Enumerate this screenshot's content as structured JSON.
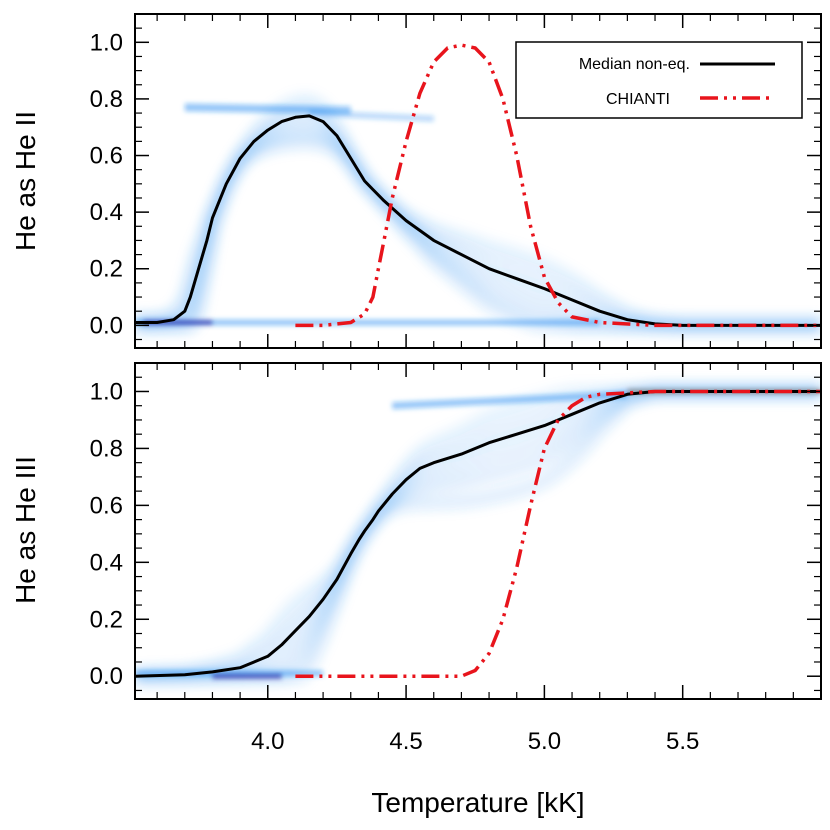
{
  "colors": {
    "median_line": "#000000",
    "chianti_line": "#e8141c",
    "density": "#1a86f0",
    "density_core": "#2a2aa8"
  },
  "chart_data": [
    {
      "type": "line",
      "id": "he2",
      "ylabel": "He as He II",
      "xlim": [
        3.52,
        6.0
      ],
      "ylim": [
        -0.08,
        1.1
      ],
      "yticks": [
        0.0,
        0.2,
        0.4,
        0.6,
        0.8,
        1.0
      ],
      "ytick_labels": [
        "0.0",
        "0.2",
        "0.4",
        "0.6",
        "0.8",
        "1.0"
      ],
      "xticks": [
        4.0,
        4.5,
        5.0,
        5.5
      ],
      "xtick_labels": [],
      "legend": {
        "position": "top-right",
        "entries": [
          {
            "label": "Median non-eq.",
            "series": "median"
          },
          {
            "label": "CHIANTI",
            "series": "chianti"
          }
        ]
      },
      "series": [
        {
          "name": "median",
          "label": "Median non-eq.",
          "style": "solid",
          "x": [
            3.52,
            3.6,
            3.66,
            3.7,
            3.72,
            3.75,
            3.78,
            3.8,
            3.85,
            3.9,
            3.95,
            4.0,
            4.05,
            4.1,
            4.15,
            4.2,
            4.25,
            4.3,
            4.35,
            4.38,
            4.42,
            4.5,
            4.6,
            4.7,
            4.8,
            4.9,
            5.0,
            5.1,
            5.2,
            5.3,
            5.4,
            5.5,
            5.7,
            6.0
          ],
          "y": [
            0.01,
            0.01,
            0.02,
            0.05,
            0.1,
            0.2,
            0.3,
            0.38,
            0.5,
            0.59,
            0.65,
            0.69,
            0.72,
            0.735,
            0.74,
            0.72,
            0.67,
            0.59,
            0.51,
            0.48,
            0.44,
            0.37,
            0.3,
            0.25,
            0.2,
            0.165,
            0.13,
            0.09,
            0.05,
            0.02,
            0.005,
            0.0,
            0.0,
            0.0
          ]
        },
        {
          "name": "chianti",
          "label": "CHIANTI",
          "style": "dash-dot-dot",
          "x": [
            4.1,
            4.2,
            4.3,
            4.35,
            4.38,
            4.4,
            4.42,
            4.45,
            4.5,
            4.55,
            4.6,
            4.65,
            4.7,
            4.75,
            4.8,
            4.85,
            4.9,
            4.95,
            5.0,
            5.05,
            5.1,
            5.2,
            5.4,
            6.0
          ],
          "y": [
            0.0,
            0.0,
            0.01,
            0.04,
            0.1,
            0.2,
            0.3,
            0.45,
            0.65,
            0.82,
            0.93,
            0.98,
            0.99,
            0.98,
            0.93,
            0.8,
            0.6,
            0.35,
            0.17,
            0.08,
            0.03,
            0.01,
            0.0,
            0.0
          ]
        }
      ]
    },
    {
      "type": "line",
      "id": "he3",
      "ylabel": "He as He III",
      "xlabel": "Temperature [kK]",
      "xlim": [
        3.52,
        6.0
      ],
      "ylim": [
        -0.08,
        1.1
      ],
      "yticks": [
        0.0,
        0.2,
        0.4,
        0.6,
        0.8,
        1.0
      ],
      "ytick_labels": [
        "0.0",
        "0.2",
        "0.4",
        "0.6",
        "0.8",
        "1.0"
      ],
      "xticks": [
        4.0,
        4.5,
        5.0,
        5.5
      ],
      "xtick_labels": [
        "4.0",
        "4.5",
        "5.0",
        "5.5"
      ],
      "series": [
        {
          "name": "median",
          "label": "Median non-eq.",
          "style": "solid",
          "x": [
            3.52,
            3.7,
            3.8,
            3.9,
            4.0,
            4.05,
            4.1,
            4.15,
            4.2,
            4.25,
            4.3,
            4.33,
            4.35,
            4.38,
            4.4,
            4.45,
            4.5,
            4.55,
            4.6,
            4.7,
            4.8,
            4.9,
            5.0,
            5.1,
            5.2,
            5.3,
            5.4,
            6.0
          ],
          "y": [
            0.0,
            0.005,
            0.015,
            0.03,
            0.07,
            0.11,
            0.16,
            0.21,
            0.27,
            0.34,
            0.43,
            0.48,
            0.51,
            0.55,
            0.58,
            0.64,
            0.69,
            0.73,
            0.75,
            0.78,
            0.82,
            0.85,
            0.88,
            0.92,
            0.96,
            0.99,
            1.0,
            1.0
          ]
        },
        {
          "name": "chianti",
          "label": "CHIANTI",
          "style": "dash-dot-dot",
          "x": [
            4.1,
            4.5,
            4.7,
            4.75,
            4.8,
            4.85,
            4.9,
            4.95,
            5.0,
            5.05,
            5.1,
            5.15,
            5.2,
            5.3,
            5.4,
            5.6,
            6.0
          ],
          "y": [
            0.0,
            0.0,
            0.0,
            0.02,
            0.08,
            0.2,
            0.38,
            0.6,
            0.8,
            0.9,
            0.95,
            0.98,
            0.99,
            0.995,
            1.0,
            1.0,
            1.0
          ]
        }
      ]
    }
  ]
}
